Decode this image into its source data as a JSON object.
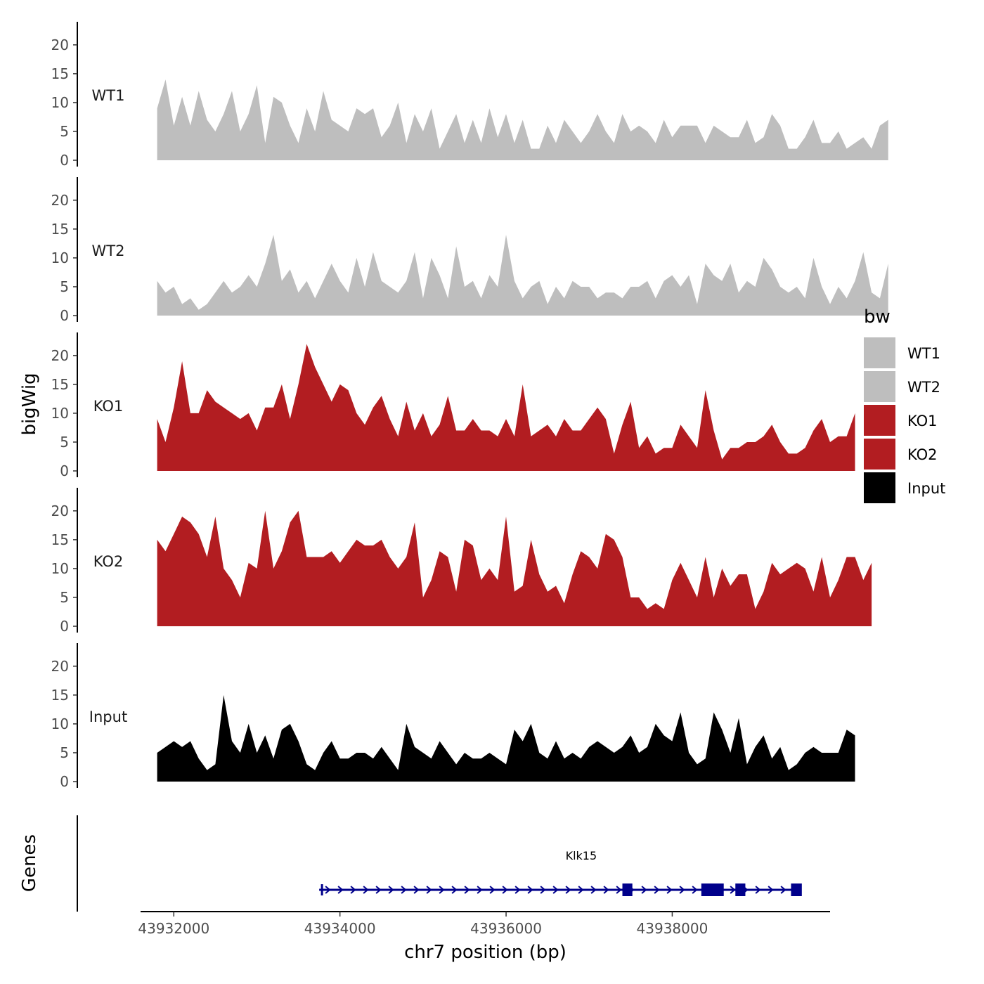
{
  "chart_data": {
    "type": "area",
    "title": "",
    "ylabel": "bigWig",
    "xlabel": "chr7 position (bp)",
    "xlim": [
      43931600,
      43939900
    ],
    "x_ticks": [
      43932000,
      43934000,
      43936000,
      43938000
    ],
    "x_tick_labels": [
      "43932000",
      "43934000",
      "43936000",
      "43938000"
    ],
    "ylim": [
      0,
      24
    ],
    "y_ticks": [
      0,
      5,
      10,
      15,
      20
    ],
    "y_tick_labels": [
      "0",
      "5",
      "10",
      "15",
      "20"
    ],
    "x_start": 43931800,
    "x_step": 100,
    "series": [
      {
        "name": "WT1",
        "color": "#bebebe",
        "values": [
          9,
          14,
          6,
          11,
          6,
          12,
          7,
          5,
          8,
          12,
          5,
          8,
          13,
          3,
          11,
          10,
          6,
          3,
          9,
          5,
          12,
          7,
          6,
          5,
          9,
          8,
          9,
          4,
          6,
          10,
          3,
          8,
          5,
          9,
          2,
          5,
          8,
          3,
          7,
          3,
          9,
          4,
          8,
          3,
          7,
          2,
          2,
          6,
          3,
          7,
          5,
          3,
          5,
          8,
          5,
          3,
          8,
          5,
          6,
          5,
          3,
          7,
          4,
          6,
          6,
          6,
          3,
          6,
          5,
          4,
          4,
          7,
          3,
          4,
          8,
          6,
          2,
          2,
          4,
          7,
          3,
          3,
          5,
          2,
          3,
          4,
          2,
          6,
          7
        ]
      },
      {
        "name": "WT2",
        "color": "#bebebe",
        "values": [
          6,
          4,
          5,
          2,
          3,
          1,
          2,
          4,
          6,
          4,
          5,
          7,
          5,
          9,
          14,
          6,
          8,
          4,
          6,
          3,
          6,
          9,
          6,
          4,
          10,
          5,
          11,
          6,
          5,
          4,
          6,
          11,
          3,
          10,
          7,
          3,
          12,
          5,
          6,
          3,
          7,
          5,
          14,
          6,
          3,
          5,
          6,
          2,
          5,
          3,
          6,
          5,
          5,
          3,
          4,
          4,
          3,
          5,
          5,
          6,
          3,
          6,
          7,
          5,
          7,
          2,
          9,
          7,
          6,
          9,
          4,
          6,
          5,
          10,
          8,
          5,
          4,
          5,
          3,
          10,
          5,
          2,
          5,
          3,
          6,
          11,
          4,
          3,
          9
        ]
      },
      {
        "name": "KO1",
        "color": "#b21d21",
        "values": [
          9,
          5,
          11,
          19,
          10,
          10,
          14,
          12,
          11,
          10,
          9,
          10,
          7,
          11,
          11,
          15,
          9,
          15,
          22,
          18,
          15,
          12,
          15,
          14,
          10,
          8,
          11,
          13,
          9,
          6,
          12,
          7,
          10,
          6,
          8,
          13,
          7,
          7,
          9,
          7,
          7,
          6,
          9,
          6,
          15,
          6,
          7,
          8,
          6,
          9,
          7,
          7,
          9,
          11,
          9,
          3,
          8,
          12,
          4,
          6,
          3,
          4,
          4,
          8,
          6,
          4,
          14,
          7,
          2,
          4,
          4,
          5,
          5,
          6,
          8,
          5,
          3,
          3,
          4,
          7,
          9,
          5,
          6,
          6,
          10
        ]
      },
      {
        "name": "KO2",
        "color": "#b21d21",
        "values": [
          15,
          13,
          16,
          19,
          18,
          16,
          12,
          19,
          10,
          8,
          5,
          11,
          10,
          20,
          10,
          13,
          18,
          20,
          12,
          12,
          12,
          13,
          11,
          13,
          15,
          14,
          14,
          15,
          12,
          10,
          12,
          18,
          5,
          8,
          13,
          12,
          6,
          15,
          14,
          8,
          10,
          8,
          19,
          6,
          7,
          15,
          9,
          6,
          7,
          4,
          9,
          13,
          12,
          10,
          16,
          15,
          12,
          5,
          5,
          3,
          4,
          3,
          8,
          11,
          8,
          5,
          12,
          5,
          10,
          7,
          9,
          9,
          3,
          6,
          11,
          9,
          10,
          11,
          10,
          6,
          12,
          5,
          8,
          12,
          12,
          8,
          11
        ]
      },
      {
        "name": "Input",
        "color": "#000000",
        "values": [
          5,
          6,
          7,
          6,
          7,
          4,
          2,
          3,
          15,
          7,
          5,
          10,
          5,
          8,
          4,
          9,
          10,
          7,
          3,
          2,
          5,
          7,
          4,
          4,
          5,
          5,
          4,
          6,
          4,
          2,
          10,
          6,
          5,
          4,
          7,
          5,
          3,
          5,
          4,
          4,
          5,
          4,
          3,
          9,
          7,
          10,
          5,
          4,
          7,
          4,
          5,
          4,
          6,
          7,
          6,
          5,
          6,
          8,
          5,
          6,
          10,
          8,
          7,
          12,
          5,
          3,
          4,
          12,
          9,
          5,
          11,
          3,
          6,
          8,
          4,
          6,
          2,
          3,
          5,
          6,
          5,
          5,
          5,
          9,
          8
        ]
      }
    ],
    "gene": {
      "name": "Klk15",
      "start": 43933750,
      "end": 43939550,
      "strand": "+",
      "exons": [
        [
          43937400,
          43937520
        ],
        [
          43938350,
          43938620
        ],
        [
          43938760,
          43938880
        ],
        [
          43939430,
          43939560
        ]
      ],
      "color": "#00008b"
    },
    "genes_label": "Genes",
    "legend": {
      "title": "bw",
      "position": "right",
      "entries": [
        {
          "label": "WT1",
          "color": "#bebebe"
        },
        {
          "label": "WT2",
          "color": "#bebebe"
        },
        {
          "label": "KO1",
          "color": "#b21d21"
        },
        {
          "label": "KO2",
          "color": "#b21d21"
        },
        {
          "label": "Input",
          "color": "#000000"
        }
      ]
    }
  }
}
